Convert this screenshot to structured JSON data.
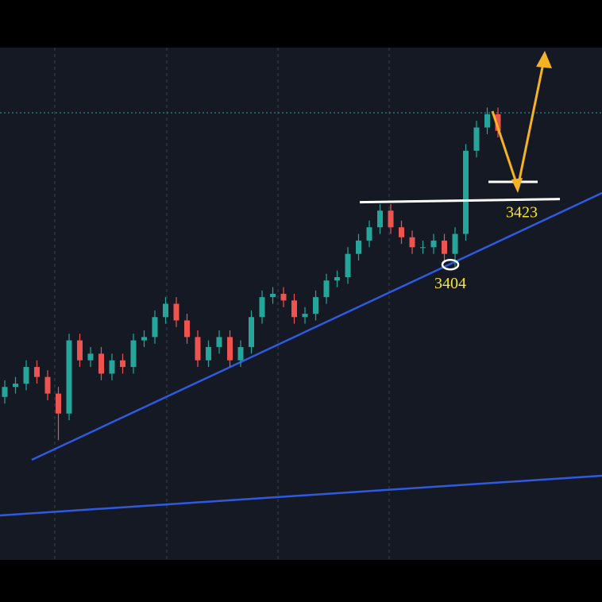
{
  "chart_data": {
    "type": "candlestick",
    "open": [
      3364,
      3367,
      3368,
      3373,
      3370,
      3365,
      3359,
      3381,
      3375,
      3377,
      3371,
      3375,
      3373,
      3381,
      3382,
      3388,
      3392,
      3387,
      3382,
      3375,
      3379,
      3382,
      3375,
      3379,
      3388,
      3394,
      3395,
      3393,
      3388,
      3389,
      3394,
      3399,
      3400,
      3407,
      3411,
      3415,
      3420,
      3415,
      3412,
      3409,
      3409,
      3411,
      3407,
      3413,
      3438,
      3445,
      3449
    ],
    "high": [
      3369,
      3370,
      3375,
      3375,
      3372,
      3367,
      3383,
      3383,
      3379,
      3379,
      3377,
      3377,
      3383,
      3384,
      3390,
      3394,
      3394,
      3389,
      3384,
      3381,
      3384,
      3384,
      3381,
      3390,
      3396,
      3397,
      3397,
      3395,
      3391,
      3396,
      3401,
      3402,
      3409,
      3413,
      3417,
      3422,
      3422,
      3417,
      3414,
      3411,
      3413,
      3413,
      3415,
      3440,
      3447,
      3451,
      3451
    ],
    "low": [
      3362,
      3365,
      3366,
      3368,
      3363,
      3351,
      3357,
      3373,
      3373,
      3369,
      3369,
      3371,
      3371,
      3379,
      3380,
      3386,
      3385,
      3380,
      3373,
      3373,
      3377,
      3373,
      3373,
      3377,
      3386,
      3392,
      3391,
      3386,
      3386,
      3387,
      3392,
      3397,
      3398,
      3405,
      3409,
      3413,
      3413,
      3410,
      3407,
      3407,
      3407,
      3405,
      3403,
      3411,
      3436,
      3443,
      3442
    ],
    "close": [
      3367,
      3368,
      3373,
      3370,
      3365,
      3359,
      3381,
      3375,
      3377,
      3371,
      3375,
      3373,
      3381,
      3382,
      3388,
      3392,
      3387,
      3382,
      3375,
      3379,
      3382,
      3375,
      3379,
      3388,
      3394,
      3395,
      3393,
      3388,
      3389,
      3394,
      3399,
      3400,
      3407,
      3411,
      3415,
      3420,
      3415,
      3412,
      3409,
      3409,
      3411,
      3407,
      3413,
      3438,
      3445,
      3449,
      3444
    ],
    "up_color": "#26a69a",
    "down_color": "#ef5350",
    "ylim": [
      3315,
      3469
    ],
    "resistance": 3423,
    "support": 3404
  }
}
